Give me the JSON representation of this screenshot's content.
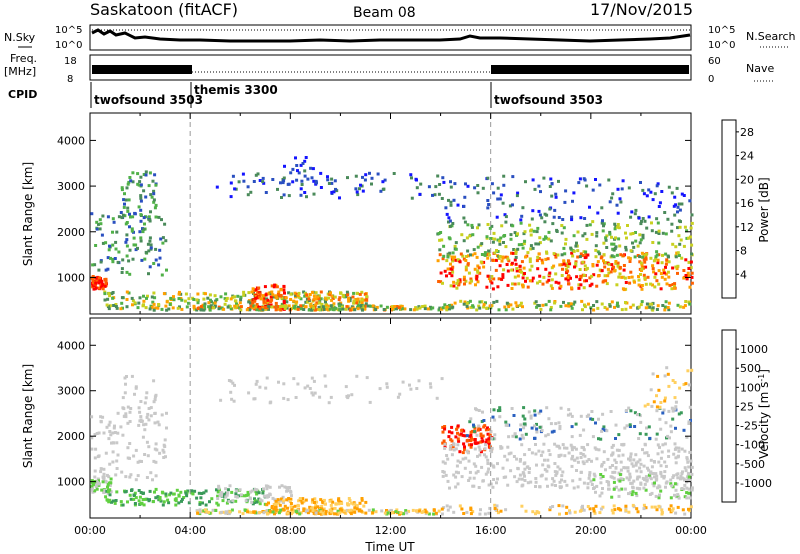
{
  "header": {
    "station": "Saskatoon  (fitACF)",
    "beam": "Beam 08",
    "date": "17/Nov/2015"
  },
  "panels": {
    "noise": {
      "left_label": "N.Sky",
      "right_label": "N.Search",
      "left_ticks": [
        "10^5",
        "10^0"
      ],
      "right_ticks": [
        "10^5",
        "10^0"
      ]
    },
    "freq": {
      "left_label_1": "Freq.",
      "left_label_2": "[MHz]",
      "right_label": "Nave",
      "left_ticks": [
        "18",
        "8"
      ],
      "right_ticks": [
        "60",
        "0"
      ]
    },
    "cpid": {
      "label": "CPID",
      "segments": [
        {
          "name": "twofsound 3503",
          "start": 0,
          "end": 4
        },
        {
          "name": "themis 3300",
          "start": 4,
          "end": 16
        },
        {
          "name": "twofsound 3503",
          "start": 16,
          "end": 24
        }
      ]
    }
  },
  "colors": {
    "power": [
      "#1414ff",
      "#2a4fc0",
      "#4a8a5a",
      "#50b048",
      "#c8d020",
      "#ffa000",
      "#ff6000",
      "#ff0000"
    ],
    "velocity": [
      "#ff0000",
      "#ff5a00",
      "#ffa000",
      "#ffd060",
      "#c8c8c8",
      "#60d040",
      "#3a9a5a",
      "#2a60c0",
      "#1010ff"
    ]
  },
  "chart_data": [
    {
      "type": "heatmap",
      "name": "power",
      "ylabel": "Slant Range [km]",
      "xlim": [
        0,
        24
      ],
      "ylim": [
        200,
        4600
      ],
      "y_ticks": [
        1000,
        2000,
        3000,
        4000
      ],
      "colorbar": {
        "label": "Power [dB]",
        "ticks": [
          "4",
          "8",
          "12",
          "16",
          "20",
          "24",
          "28"
        ],
        "range": [
          0,
          30
        ]
      },
      "dashed_lines_hours": [
        4,
        16
      ]
    },
    {
      "type": "heatmap",
      "name": "velocity",
      "ylabel": "Slant Range [km]",
      "xlabel": "Time UT",
      "xlim": [
        0,
        24
      ],
      "ylim": [
        200,
        4600
      ],
      "x_ticks": [
        "00:00",
        "04:00",
        "08:00",
        "12:00",
        "16:00",
        "20:00",
        "00:00"
      ],
      "y_ticks": [
        1000,
        2000,
        3000,
        4000
      ],
      "colorbar": {
        "label": "Velocity [m s",
        "label_sup": "-1",
        "label_end": "]",
        "ticks": [
          "-1000",
          "-500",
          "-100",
          "-25",
          "25",
          "100",
          "500",
          "1000"
        ]
      },
      "dashed_lines_hours": [
        4,
        16
      ]
    }
  ]
}
